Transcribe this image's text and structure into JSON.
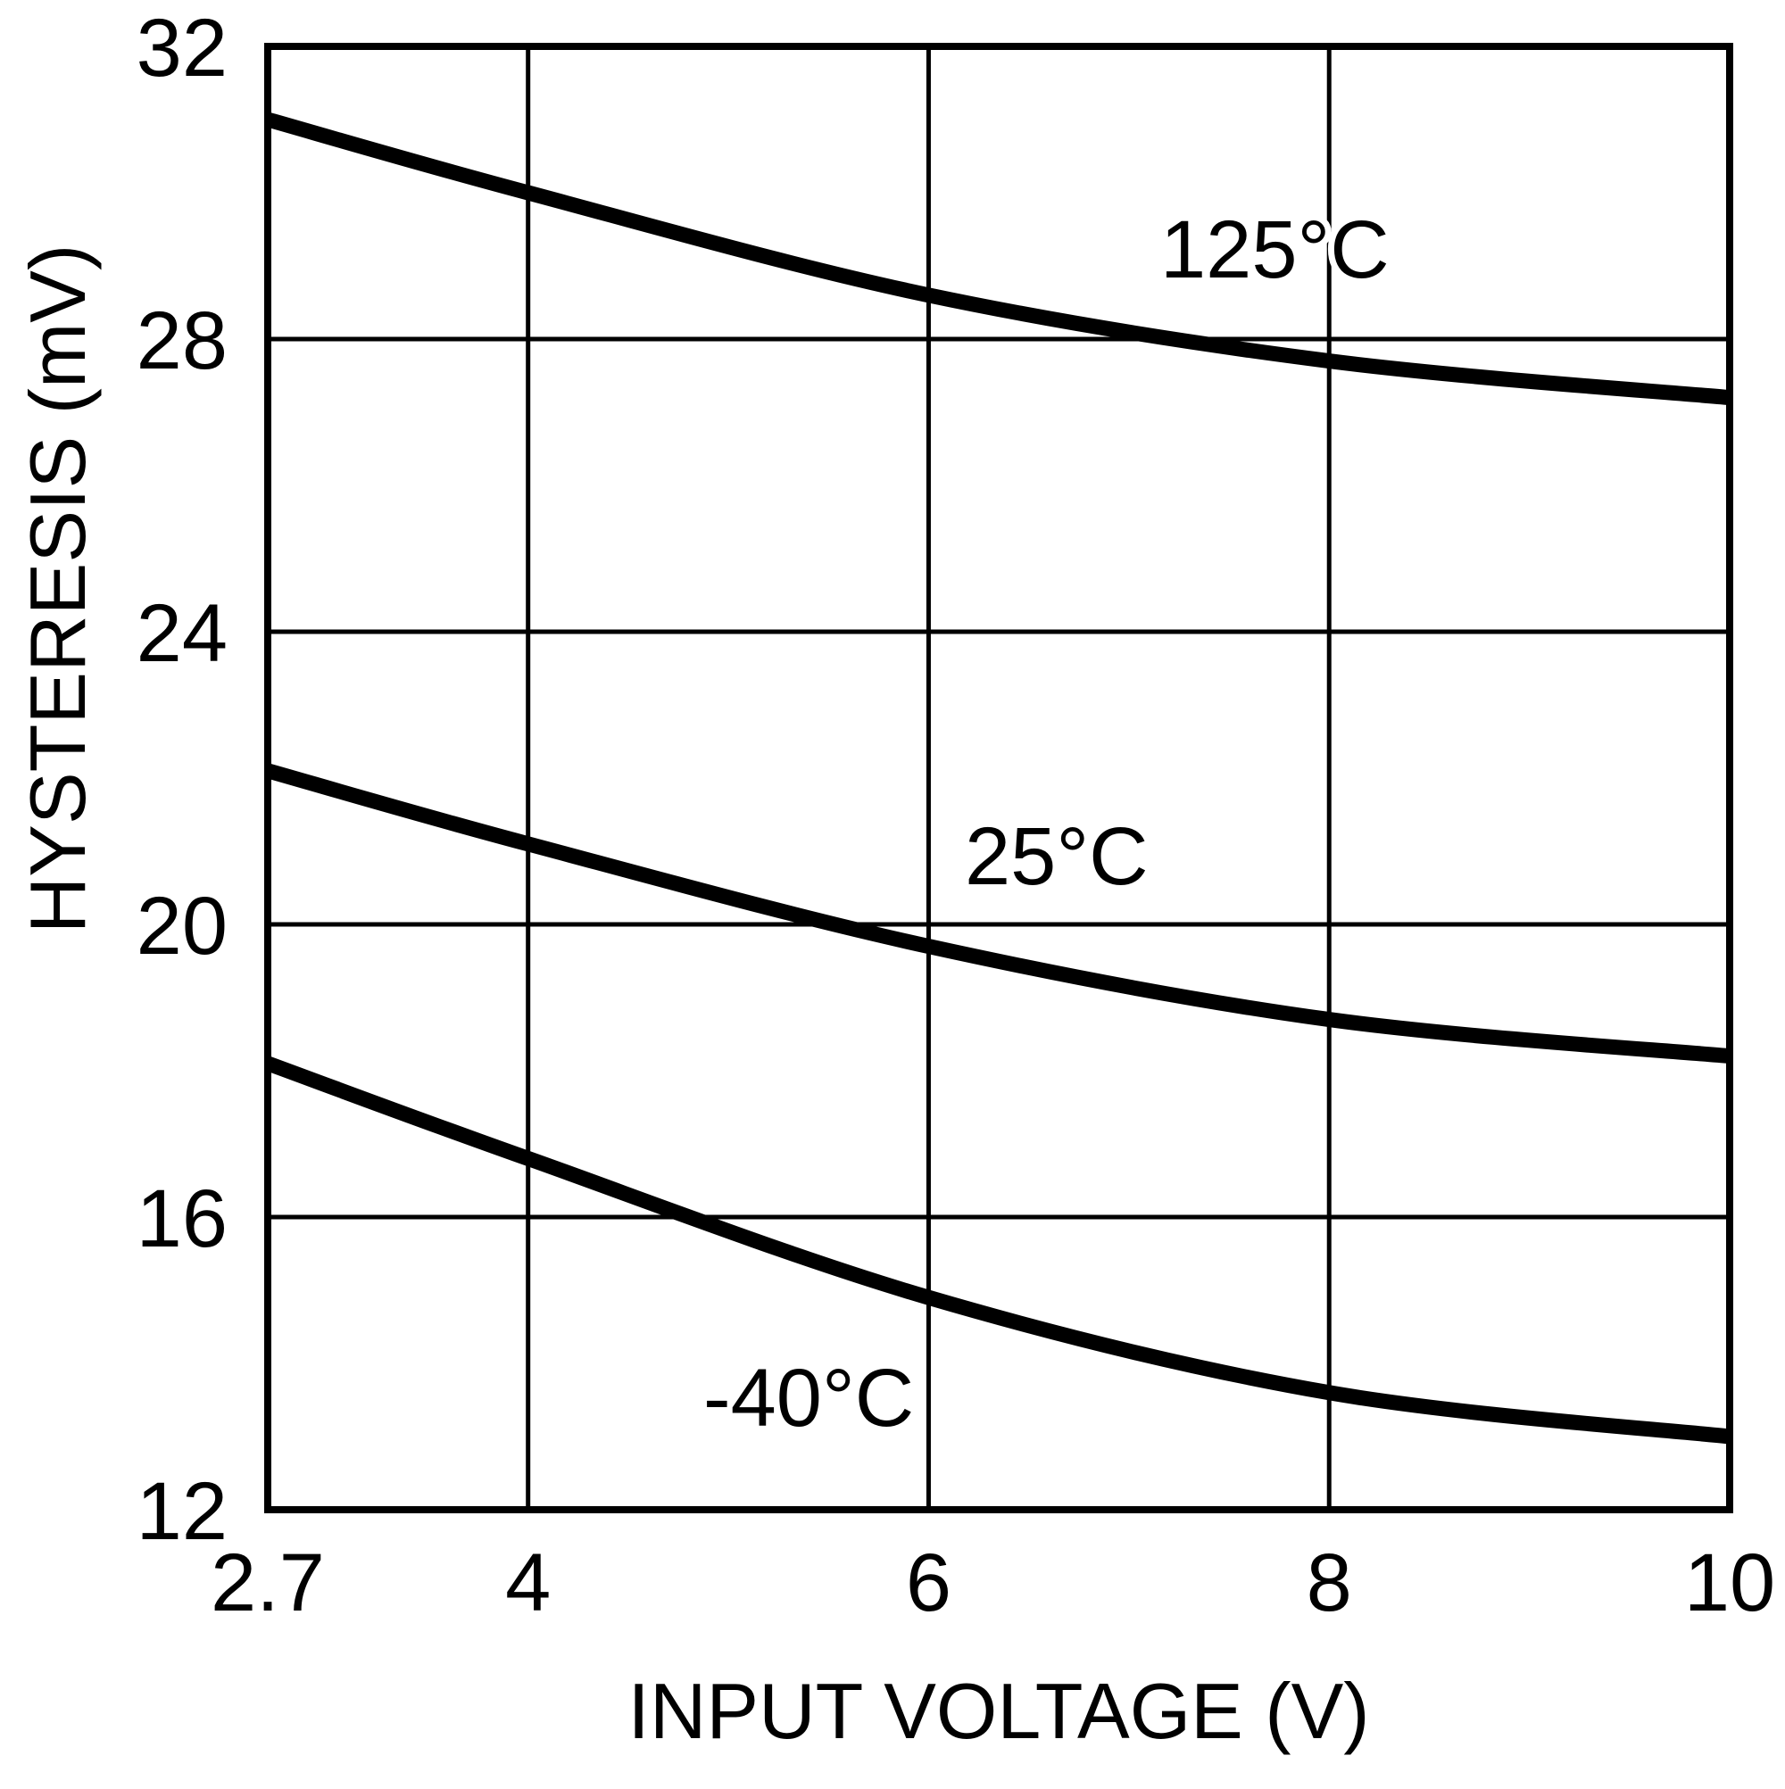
{
  "chart_data": {
    "type": "line",
    "title": "",
    "xlabel": "INPUT VOLTAGE (V)",
    "ylabel": "HYSTERESIS (mV)",
    "xlim": [
      2.7,
      10
    ],
    "ylim": [
      12,
      32
    ],
    "x_ticks": [
      2.7,
      4,
      6,
      8,
      10
    ],
    "x_tick_labels": [
      "2.7",
      "4",
      "6",
      "8",
      "10"
    ],
    "y_ticks": [
      12,
      16,
      20,
      24,
      28,
      32
    ],
    "y_tick_labels": [
      "12",
      "16",
      "20",
      "24",
      "28",
      "32"
    ],
    "grid": true,
    "legend": "inline labels",
    "x": [
      2.7,
      4,
      6,
      8,
      10
    ],
    "series": [
      {
        "name": "125°C",
        "label": "125°C",
        "values": [
          31.0,
          30.0,
          28.6,
          27.7,
          27.2
        ],
        "label_pos": {
          "x": 1300,
          "y": 311
        }
      },
      {
        "name": "25°C",
        "label": "25°C",
        "values": [
          22.1,
          21.1,
          19.7,
          18.7,
          18.2
        ],
        "label_pos": {
          "x": 1081,
          "y": 991
        }
      },
      {
        "name": "-40°C",
        "label": "-40°C",
        "values": [
          18.1,
          16.8,
          14.9,
          13.6,
          13.0
        ],
        "label_pos": {
          "x": 788,
          "y": 1598
        }
      }
    ],
    "colors": {
      "line": "#000000",
      "grid": "#000000",
      "background": "#ffffff"
    }
  }
}
